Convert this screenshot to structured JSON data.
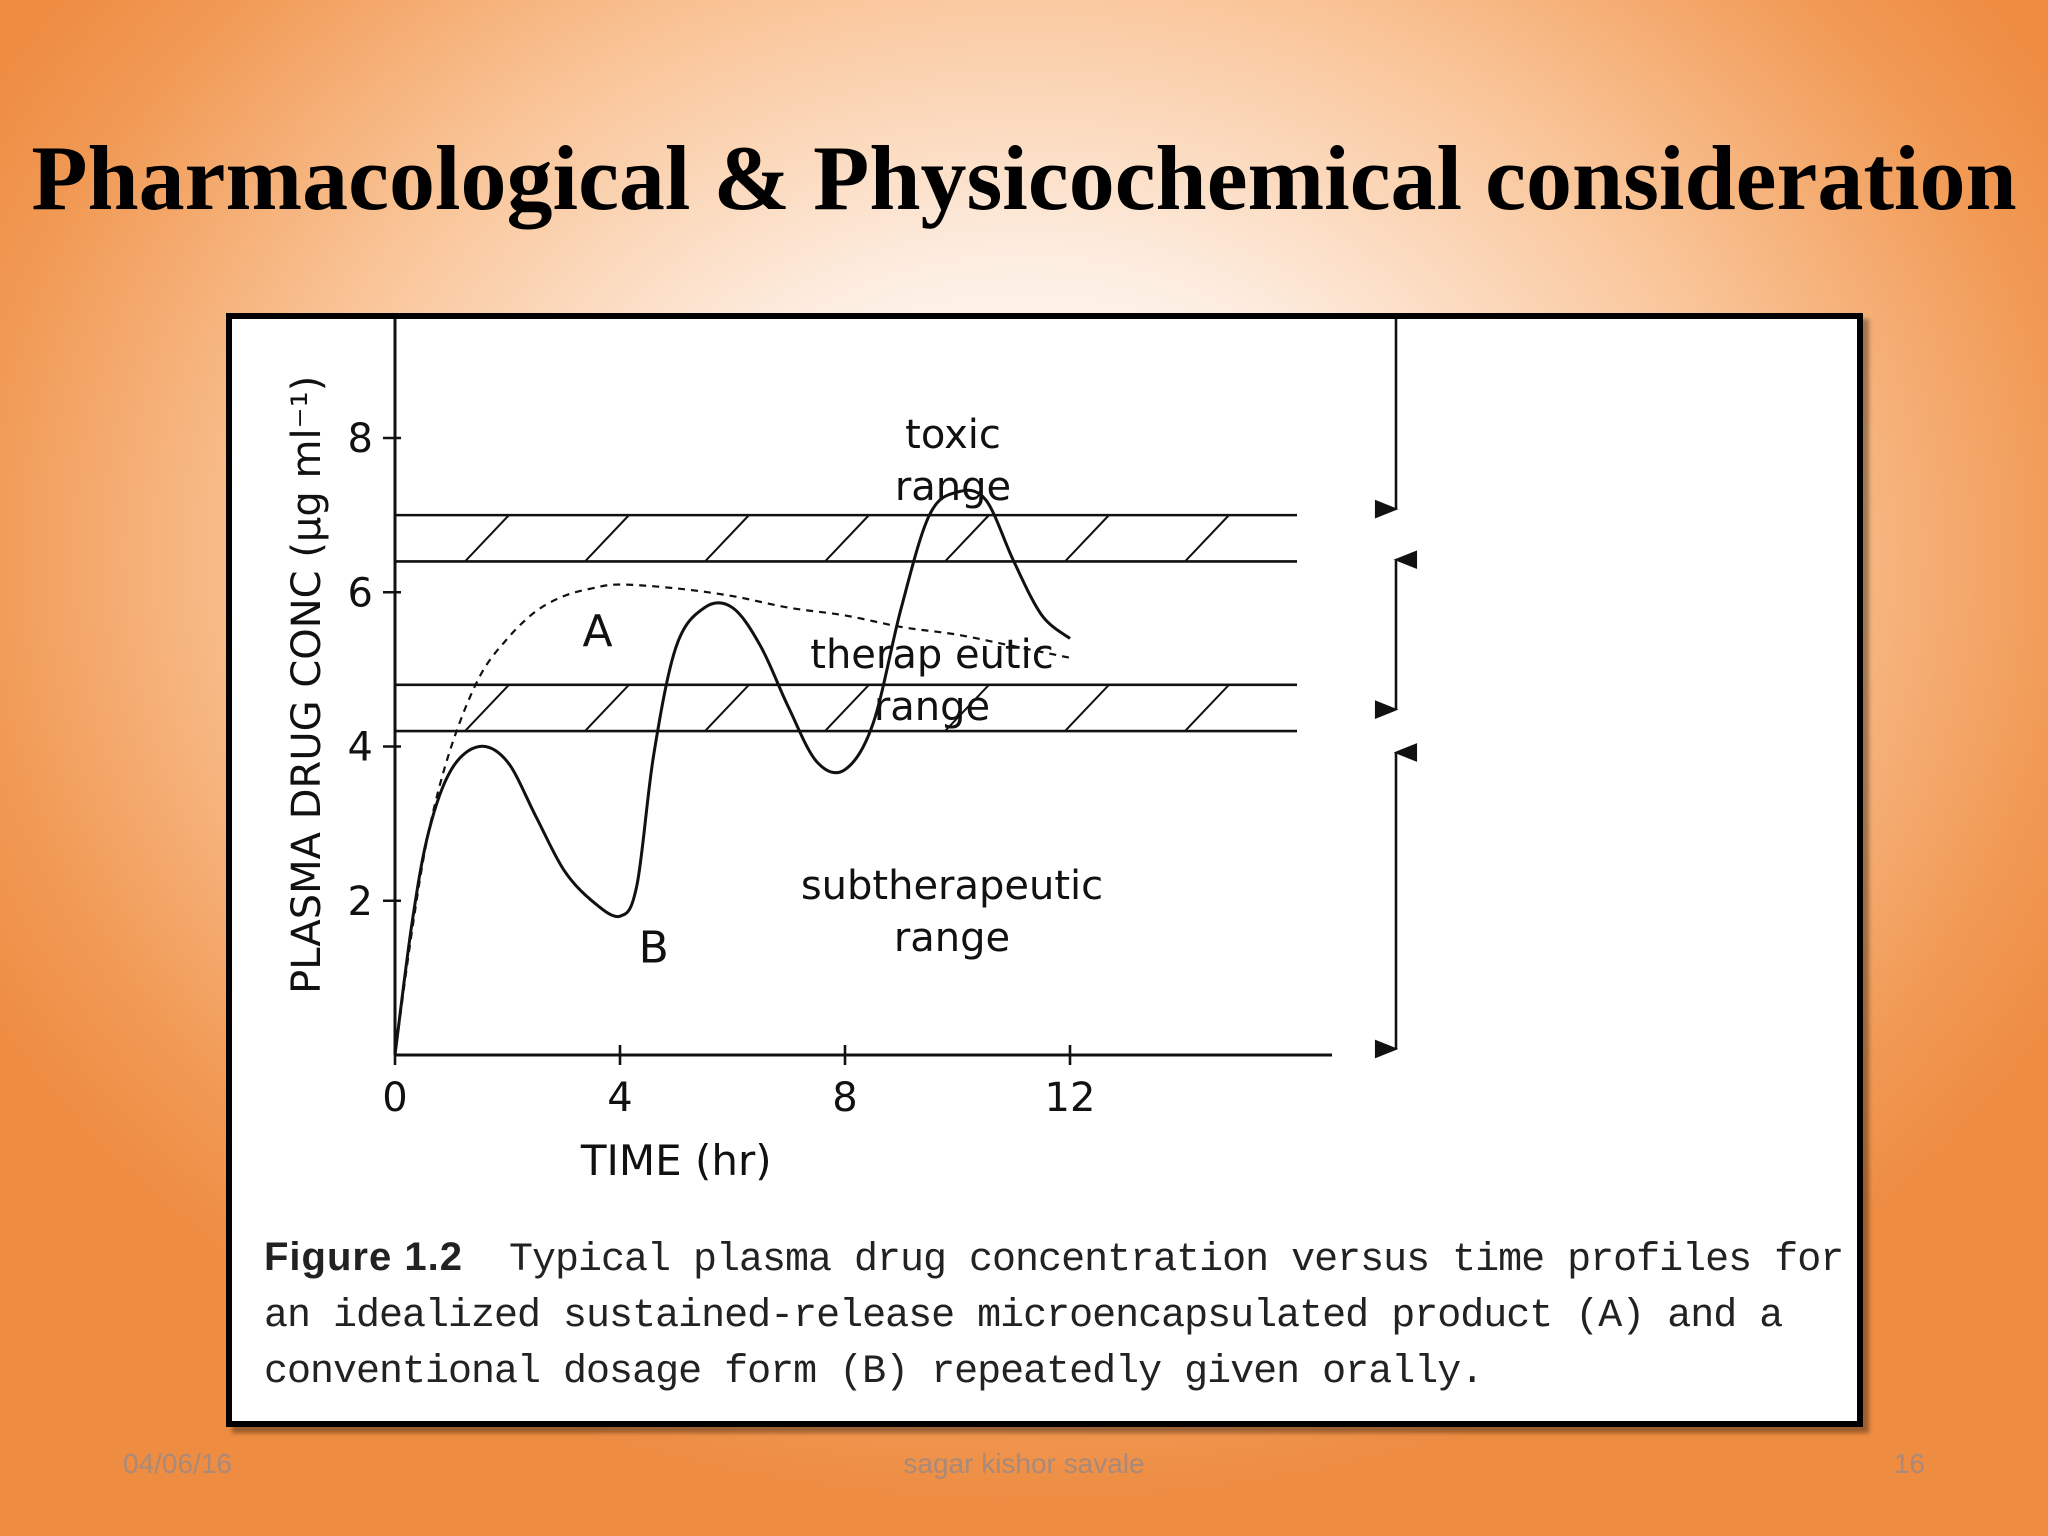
{
  "slide": {
    "title": "Pharmacological & Physicochemical consideration",
    "footer": {
      "date": "04/06/16",
      "author": "sagar kishor savale",
      "page": "16"
    }
  },
  "caption": {
    "label": "Figure 1.2",
    "text": "Typical plasma drug concentration versus time profiles for an idealized sustained-release microencapsulated product (A) and a conventional dosage form (B) repeatedly given orally."
  },
  "chart_data": {
    "type": "line",
    "xlabel": "TIME (hr)",
    "ylabel": "PLASMA DRUG CONC (µg ml⁻¹)",
    "xlim": [
      0,
      12
    ],
    "ylim": [
      0,
      9.6
    ],
    "xticks": [
      "0",
      "4",
      "8",
      "12"
    ],
    "yticks": [
      "2",
      "4",
      "6",
      "8"
    ],
    "grid": false,
    "bands": [
      {
        "label_lines": [
          "toxic",
          "range"
        ],
        "y_low": 7.0,
        "y_high": 9.6
      },
      {
        "label_lines": [
          "therap eutic",
          "range"
        ],
        "y_low": 4.2,
        "y_high": 7.0
      },
      {
        "label_lines": [
          "subtherapeutic",
          "range"
        ],
        "y_low": 0,
        "y_high": 4.2
      }
    ],
    "hatched_bands": [
      {
        "y_low": 6.4,
        "y_high": 7.0
      },
      {
        "y_low": 4.2,
        "y_high": 4.8
      }
    ],
    "series": [
      {
        "name": "A",
        "style": "dashed",
        "x": [
          0,
          0.3,
          0.6,
          1.0,
          1.5,
          2.0,
          2.5,
          3.0,
          3.5,
          4.0,
          5.0,
          6.0,
          7.0,
          8.0,
          9.0,
          10.0,
          11.0,
          12.0
        ],
        "y": [
          0,
          1.6,
          2.9,
          4.0,
          4.9,
          5.4,
          5.75,
          5.95,
          6.05,
          6.1,
          6.05,
          5.95,
          5.8,
          5.7,
          5.55,
          5.45,
          5.3,
          5.15
        ]
      },
      {
        "name": "B",
        "style": "solid",
        "x": [
          0,
          0.3,
          0.6,
          1.0,
          1.5,
          2.0,
          2.5,
          3.0,
          3.5,
          4.0,
          4.3,
          4.6,
          5.0,
          5.5,
          6.0,
          6.5,
          7.0,
          7.5,
          8.0,
          8.5,
          9.0,
          9.5,
          10.0,
          10.5,
          11.0,
          11.5,
          12.0
        ],
        "y": [
          0,
          1.7,
          2.9,
          3.7,
          4.0,
          3.8,
          3.1,
          2.4,
          2.0,
          1.8,
          2.2,
          3.9,
          5.3,
          5.8,
          5.8,
          5.3,
          4.5,
          3.8,
          3.7,
          4.3,
          5.8,
          7.0,
          7.3,
          7.2,
          6.4,
          5.7,
          5.4
        ]
      }
    ]
  }
}
